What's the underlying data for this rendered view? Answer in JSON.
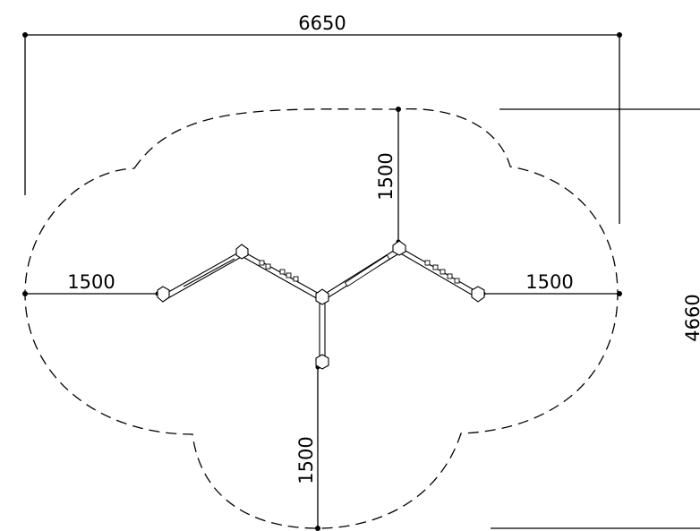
{
  "dimensions": {
    "overall_width": "6650",
    "overall_height": "4660",
    "left_clearance": "1500",
    "right_clearance": "1500",
    "top_clearance": "1500",
    "bottom_clearance": "1500"
  }
}
